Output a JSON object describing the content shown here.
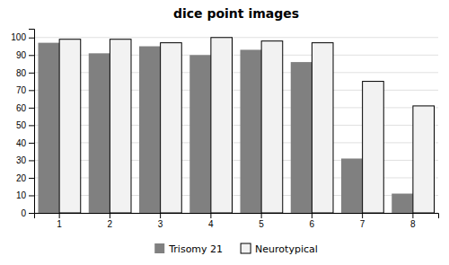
{
  "chart_data": {
    "type": "bar",
    "title": "dice point images",
    "categories": [
      1,
      2,
      3,
      4,
      5,
      6,
      7,
      8
    ],
    "series": [
      {
        "name": "Trisomy 21",
        "color": "#808080",
        "values": [
          97,
          91,
          95,
          90,
          93,
          86,
          31,
          11
        ]
      },
      {
        "name": "Neurotypical",
        "color": "#f2f2f2",
        "values": [
          99,
          99,
          97,
          100,
          98,
          97,
          75,
          61
        ]
      }
    ],
    "ylim": [
      0,
      105
    ],
    "yticks": [
      0,
      10,
      20,
      30,
      40,
      50,
      60,
      70,
      80,
      90,
      100
    ],
    "grid": true,
    "legend": "bottom"
  }
}
